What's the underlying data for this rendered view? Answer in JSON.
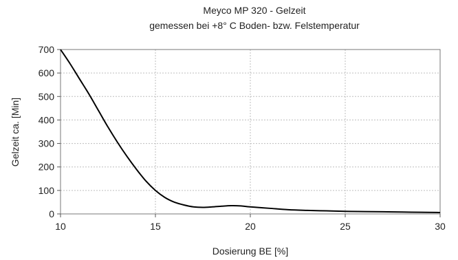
{
  "chart_data": {
    "type": "line",
    "title": "Meyco MP 320 - Gelzeit",
    "subtitle": "gemessen bei +8° C Boden- bzw. Felstemperatur",
    "xlabel": "Dosierung BE [%]",
    "ylabel": "Gelzeit ca. [Min]",
    "xlim": [
      10,
      30
    ],
    "ylim": [
      0,
      700
    ],
    "xticks": [
      10,
      15,
      20,
      25,
      30
    ],
    "yticks": [
      0,
      100,
      200,
      300,
      400,
      500,
      600,
      700
    ],
    "grid": true,
    "series": [
      {
        "name": "",
        "x": [
          10,
          10.5,
          11,
          11.5,
          12,
          12.5,
          13,
          13.5,
          14,
          14.5,
          15,
          15.5,
          16,
          16.5,
          17,
          17.5,
          18,
          18.5,
          19,
          19.5,
          20,
          21,
          22,
          23,
          24,
          25,
          26,
          27,
          28,
          29,
          30
        ],
        "y": [
          700,
          640,
          575,
          510,
          440,
          370,
          305,
          245,
          190,
          140,
          100,
          70,
          50,
          38,
          30,
          28,
          30,
          33,
          35,
          34,
          30,
          24,
          18,
          15,
          13,
          11,
          10,
          9,
          8,
          7,
          6
        ]
      }
    ]
  }
}
